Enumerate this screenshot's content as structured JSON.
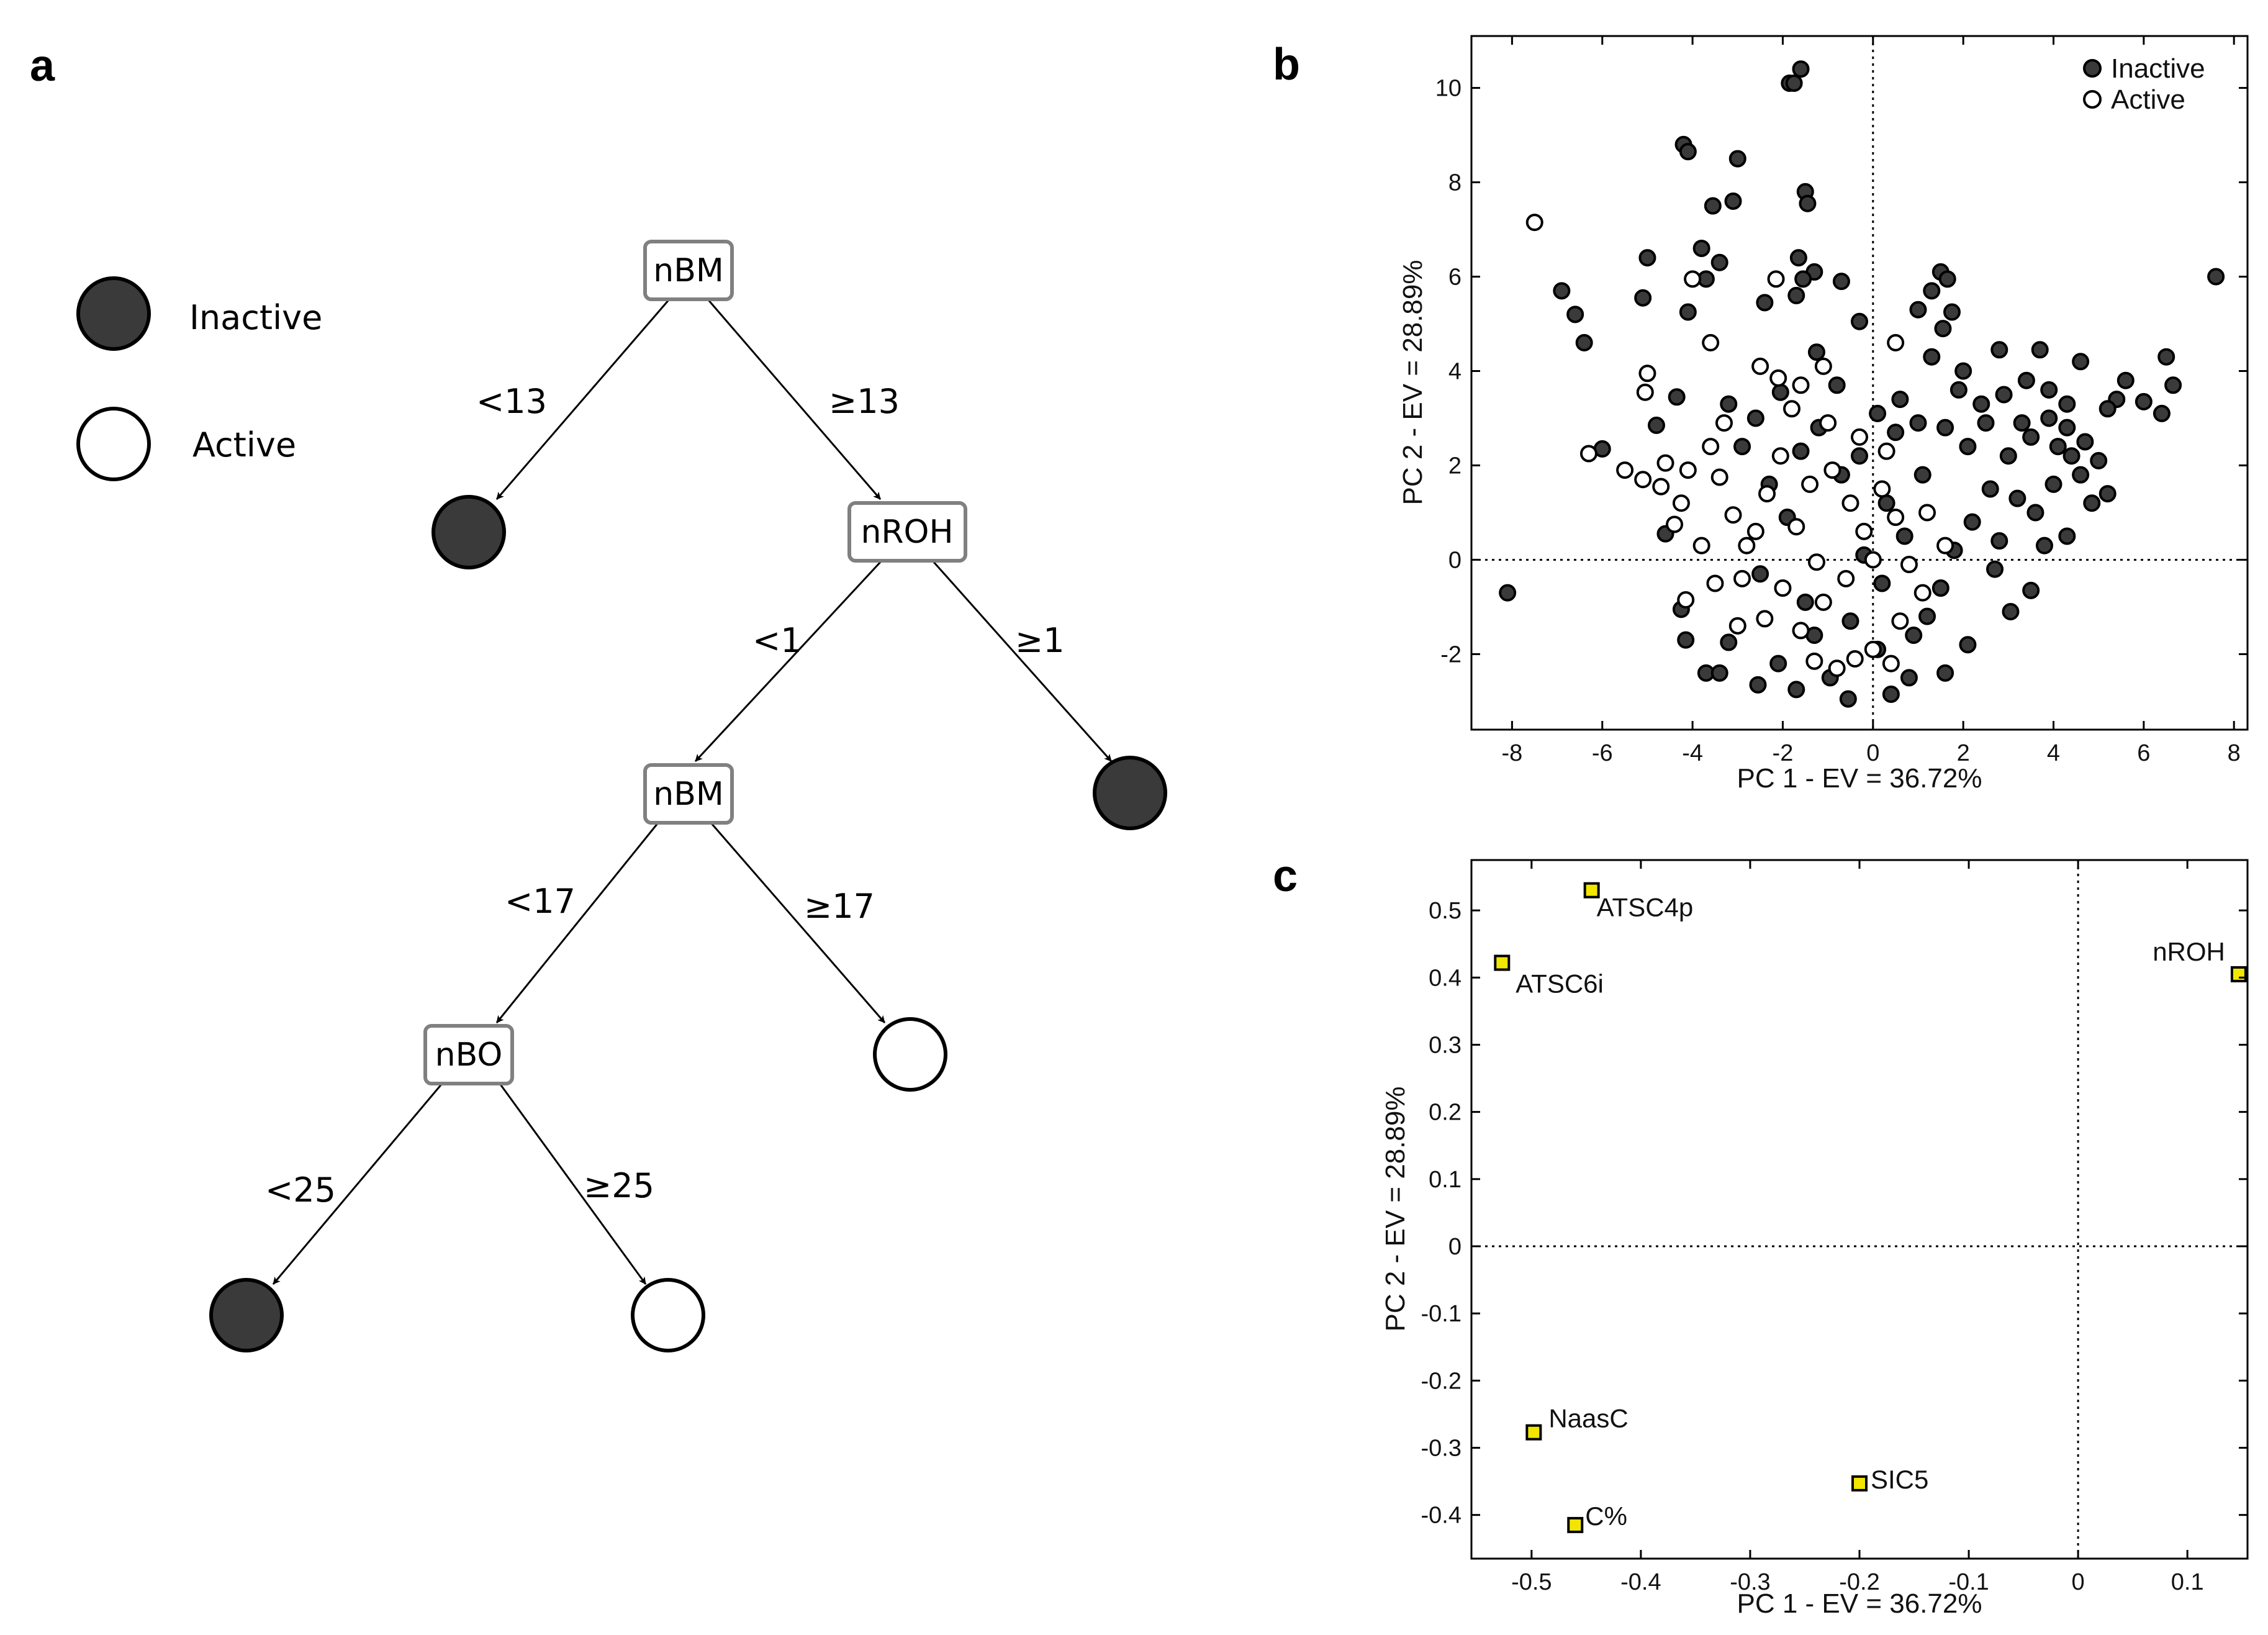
{
  "panels": {
    "a": "a",
    "b": "b",
    "c": "c"
  },
  "tree_legend": {
    "inactive": "Inactive",
    "active": "Active"
  },
  "tree": {
    "nodes": [
      {
        "id": "n1",
        "label": "nBM"
      },
      {
        "id": "n2",
        "label": "nROH"
      },
      {
        "id": "n3",
        "label": "nBM"
      },
      {
        "id": "n4",
        "label": "nBO"
      }
    ],
    "leaves": [
      {
        "id": "l1",
        "class": "inactive"
      },
      {
        "id": "l2",
        "class": "inactive"
      },
      {
        "id": "l3",
        "class": "active"
      },
      {
        "id": "l4",
        "class": "inactive"
      },
      {
        "id": "l5",
        "class": "active"
      }
    ],
    "edges": [
      {
        "from": "n1",
        "to": "l1",
        "label": "<13"
      },
      {
        "from": "n1",
        "to": "n2",
        "label": "≥13"
      },
      {
        "from": "n2",
        "to": "n3",
        "label": "<1"
      },
      {
        "from": "n2",
        "to": "l2",
        "label": "≥1"
      },
      {
        "from": "n3",
        "to": "n4",
        "label": "<17"
      },
      {
        "from": "n3",
        "to": "l3",
        "label": "≥17"
      },
      {
        "from": "n4",
        "to": "l4",
        "label": "<25"
      },
      {
        "from": "n4",
        "to": "l5",
        "label": "≥25"
      }
    ]
  },
  "colors": {
    "inactive_fill": "#3a3a3a",
    "active_fill": "#ffffff",
    "node_border": "#808080",
    "loading_marker": "#f2e600"
  },
  "chart_data": [
    {
      "type": "scatter",
      "title": "",
      "xlabel": "PC 1 - EV = 36.72%",
      "ylabel": "PC 2 - EV = 28.89%",
      "xlim": [
        -8.9,
        8.3
      ],
      "ylim": [
        -3.6,
        11.1
      ],
      "xticks": [
        "-8",
        "-6",
        "-4",
        "-2",
        "0",
        "2",
        "4",
        "6",
        "8"
      ],
      "yticks": [
        "-2",
        "0",
        "2",
        "4",
        "6",
        "8",
        "10"
      ],
      "grid": false,
      "legend": {
        "position": "top-right",
        "entries": [
          "Inactive",
          "Active"
        ]
      },
      "series": [
        {
          "name": "Inactive",
          "points": [
            [
              -1.6,
              10.4
            ],
            [
              -1.85,
              10.1
            ],
            [
              -1.75,
              10.1
            ],
            [
              -4.2,
              8.8
            ],
            [
              -4.1,
              8.65
            ],
            [
              -3.0,
              8.5
            ],
            [
              -3.55,
              7.5
            ],
            [
              -3.1,
              7.6
            ],
            [
              -1.5,
              7.8
            ],
            [
              -1.45,
              7.55
            ],
            [
              -3.8,
              6.6
            ],
            [
              -3.4,
              6.3
            ],
            [
              -3.7,
              5.95
            ],
            [
              -1.65,
              6.4
            ],
            [
              -1.3,
              6.1
            ],
            [
              -1.55,
              5.95
            ],
            [
              -0.7,
              5.9
            ],
            [
              -2.4,
              5.45
            ],
            [
              -1.7,
              5.6
            ],
            [
              1.5,
              6.1
            ],
            [
              1.65,
              5.95
            ],
            [
              1.3,
              5.7
            ],
            [
              -5.0,
              6.4
            ],
            [
              -5.1,
              5.55
            ],
            [
              -6.9,
              5.7
            ],
            [
              -6.6,
              5.2
            ],
            [
              -6.4,
              4.6
            ],
            [
              -4.1,
              5.25
            ],
            [
              -0.3,
              5.05
            ],
            [
              1.75,
              5.25
            ],
            [
              1.55,
              4.9
            ],
            [
              1.0,
              5.3
            ],
            [
              7.6,
              6.0
            ],
            [
              6.5,
              4.3
            ],
            [
              6.65,
              3.7
            ],
            [
              5.6,
              3.8
            ],
            [
              4.6,
              4.2
            ],
            [
              3.7,
              4.45
            ],
            [
              2.8,
              4.45
            ],
            [
              3.9,
              3.6
            ],
            [
              5.4,
              3.4
            ],
            [
              6.0,
              3.35
            ],
            [
              6.4,
              3.1
            ],
            [
              5.2,
              3.2
            ],
            [
              4.3,
              3.3
            ],
            [
              3.4,
              3.8
            ],
            [
              2.0,
              4.0
            ],
            [
              1.3,
              4.3
            ],
            [
              -1.25,
              4.4
            ],
            [
              -0.8,
              3.7
            ],
            [
              -2.05,
              3.55
            ],
            [
              -3.2,
              3.3
            ],
            [
              -4.35,
              3.45
            ],
            [
              -4.8,
              2.85
            ],
            [
              -6.0,
              2.35
            ],
            [
              -8.1,
              -0.7
            ],
            [
              -4.6,
              0.55
            ],
            [
              -4.25,
              -1.05
            ],
            [
              -4.15,
              -1.7
            ],
            [
              -3.7,
              -2.4
            ],
            [
              -3.4,
              -2.4
            ],
            [
              -3.2,
              -1.75
            ],
            [
              -2.55,
              -2.65
            ],
            [
              -1.7,
              -2.75
            ],
            [
              -0.55,
              -2.95
            ],
            [
              0.4,
              -2.85
            ],
            [
              -0.95,
              -2.5
            ],
            [
              0.8,
              -2.5
            ],
            [
              1.6,
              -2.4
            ],
            [
              2.1,
              -1.8
            ],
            [
              3.05,
              -1.1
            ],
            [
              3.5,
              -0.65
            ],
            [
              2.7,
              -0.2
            ],
            [
              3.8,
              0.3
            ],
            [
              4.3,
              0.5
            ],
            [
              4.85,
              1.2
            ],
            [
              5.2,
              1.4
            ],
            [
              4.6,
              1.8
            ],
            [
              5.0,
              2.1
            ],
            [
              4.7,
              2.5
            ],
            [
              4.3,
              2.8
            ],
            [
              3.9,
              3.0
            ],
            [
              3.5,
              2.6
            ],
            [
              3.0,
              2.2
            ],
            [
              2.6,
              1.5
            ],
            [
              2.2,
              0.8
            ],
            [
              1.8,
              0.2
            ],
            [
              1.5,
              -0.6
            ],
            [
              1.2,
              -1.2
            ],
            [
              0.9,
              -1.6
            ],
            [
              0.5,
              2.7
            ],
            [
              0.1,
              3.1
            ],
            [
              -0.3,
              2.2
            ],
            [
              -0.7,
              1.8
            ],
            [
              -1.2,
              2.8
            ],
            [
              -1.6,
              2.3
            ],
            [
              0.3,
              1.2
            ],
            [
              0.7,
              0.5
            ],
            [
              1.1,
              1.8
            ],
            [
              1.6,
              2.8
            ],
            [
              2.1,
              2.4
            ],
            [
              2.4,
              3.3
            ],
            [
              -0.2,
              0.1
            ],
            [
              0.2,
              -0.5
            ],
            [
              -0.5,
              -1.3
            ],
            [
              0.1,
              -1.9
            ],
            [
              -1.3,
              -1.6
            ],
            [
              -2.1,
              -2.2
            ],
            [
              3.2,
              1.3
            ],
            [
              2.8,
              0.4
            ],
            [
              3.6,
              1.0
            ],
            [
              4.0,
              1.6
            ],
            [
              4.4,
              2.2
            ],
            [
              3.3,
              2.9
            ],
            [
              -2.6,
              3.0
            ],
            [
              -2.9,
              2.4
            ],
            [
              -2.3,
              1.6
            ],
            [
              -1.9,
              0.9
            ],
            [
              -2.5,
              -0.3
            ],
            [
              -1.5,
              -0.9
            ],
            [
              0.6,
              3.4
            ],
            [
              1.0,
              2.9
            ],
            [
              1.9,
              3.6
            ],
            [
              2.5,
              2.9
            ],
            [
              2.9,
              3.5
            ],
            [
              4.1,
              2.4
            ]
          ]
        },
        {
          "name": "Active",
          "points": [
            [
              -7.5,
              7.15
            ],
            [
              -4.0,
              5.95
            ],
            [
              -2.15,
              5.95
            ],
            [
              -3.6,
              4.6
            ],
            [
              -5.0,
              3.95
            ],
            [
              -5.05,
              3.55
            ],
            [
              -6.3,
              2.25
            ],
            [
              -5.5,
              1.9
            ],
            [
              -5.1,
              1.7
            ],
            [
              -4.7,
              1.55
            ],
            [
              -4.6,
              2.05
            ],
            [
              -4.1,
              1.9
            ],
            [
              -4.25,
              1.2
            ],
            [
              -4.4,
              0.75
            ],
            [
              -4.15,
              -0.85
            ],
            [
              -3.3,
              2.9
            ],
            [
              -3.4,
              1.75
            ],
            [
              -3.1,
              0.95
            ],
            [
              -2.8,
              0.3
            ],
            [
              -2.9,
              -0.4
            ],
            [
              -3.0,
              -1.4
            ],
            [
              -2.4,
              -1.25
            ],
            [
              -2.5,
              4.1
            ],
            [
              -2.1,
              3.85
            ],
            [
              -1.6,
              3.7
            ],
            [
              -1.8,
              3.2
            ],
            [
              0.5,
              4.6
            ],
            [
              -1.1,
              4.1
            ],
            [
              -1.4,
              1.6
            ],
            [
              -1.7,
              0.7
            ],
            [
              -1.25,
              -0.05
            ],
            [
              -1.1,
              -0.9
            ],
            [
              -1.3,
              -2.15
            ],
            [
              -0.8,
              -2.3
            ],
            [
              -0.4,
              -2.1
            ],
            [
              0.0,
              -1.9
            ],
            [
              0.4,
              -2.2
            ],
            [
              -0.9,
              1.9
            ],
            [
              -0.5,
              1.2
            ],
            [
              -0.2,
              0.6
            ],
            [
              0.2,
              1.5
            ],
            [
              0.5,
              0.9
            ],
            [
              0.8,
              -0.1
            ],
            [
              1.1,
              -0.7
            ],
            [
              0.6,
              -1.3
            ],
            [
              1.2,
              1.0
            ],
            [
              1.6,
              0.3
            ],
            [
              -2.05,
              2.2
            ],
            [
              -2.35,
              1.4
            ],
            [
              -2.6,
              0.6
            ],
            [
              -2.0,
              -0.6
            ],
            [
              -1.6,
              -1.5
            ],
            [
              -0.6,
              -0.4
            ],
            [
              0.0,
              0.0
            ],
            [
              -0.3,
              2.6
            ],
            [
              0.3,
              2.3
            ],
            [
              -1.0,
              2.9
            ],
            [
              -3.6,
              2.4
            ],
            [
              -3.8,
              0.3
            ],
            [
              -3.5,
              -0.5
            ]
          ]
        }
      ]
    },
    {
      "type": "scatter",
      "title": "",
      "xlabel": "PC 1 - EV = 36.72%",
      "ylabel": "PC 2 - EV = 28.89%",
      "xlim": [
        -0.555,
        0.155
      ],
      "ylim": [
        -0.465,
        0.575
      ],
      "xticks": [
        "-0.5",
        "-0.4",
        "-0.3",
        "-0.2",
        "-0.1",
        "0",
        "0.1"
      ],
      "yticks": [
        "-0.4",
        "-0.3",
        "-0.2",
        "-0.1",
        "0",
        "0.1",
        "0.2",
        "0.3",
        "0.4",
        "0.5"
      ],
      "grid": false,
      "points": [
        {
          "label": "ATSC4p",
          "x": -0.445,
          "y": 0.53
        },
        {
          "label": "ATSC6i",
          "x": -0.527,
          "y": 0.422
        },
        {
          "label": "nROH",
          "x": 0.147,
          "y": 0.405
        },
        {
          "label": "NaasC",
          "x": -0.498,
          "y": -0.277
        },
        {
          "label": "SIC5",
          "x": -0.2,
          "y": -0.353
        },
        {
          "label": "C%",
          "x": -0.46,
          "y": -0.415
        }
      ]
    }
  ]
}
